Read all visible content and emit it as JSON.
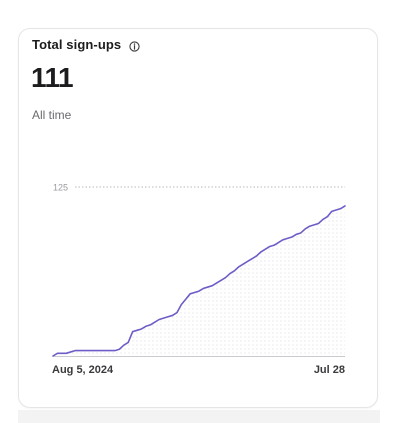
{
  "card": {
    "title": "Total sign-ups",
    "info_icon": "info-circle-icon",
    "metric": "111",
    "subtitle": "All time"
  },
  "chart_data": {
    "type": "area",
    "x_start_label": "Aug 5, 2024",
    "x_end_label": "Jul 28",
    "y_ref_label": "125",
    "ylim": [
      0,
      125
    ],
    "grid": false,
    "line_color": "#6e5cc7",
    "series": [
      {
        "values": [
          0,
          2,
          2,
          2,
          3,
          4,
          4,
          4,
          4,
          4,
          4,
          4,
          4,
          4,
          4,
          5,
          8,
          10,
          18,
          19,
          20,
          22,
          23,
          25,
          27,
          28,
          29,
          30,
          32,
          38,
          42,
          46,
          47,
          48,
          50,
          51,
          52,
          54,
          56,
          58,
          61,
          63,
          66,
          68,
          70,
          72,
          74,
          77,
          79,
          81,
          82,
          84,
          86,
          87,
          88,
          90,
          91,
          94,
          96,
          97,
          98,
          101,
          103,
          107,
          108,
          109,
          111
        ]
      }
    ]
  }
}
